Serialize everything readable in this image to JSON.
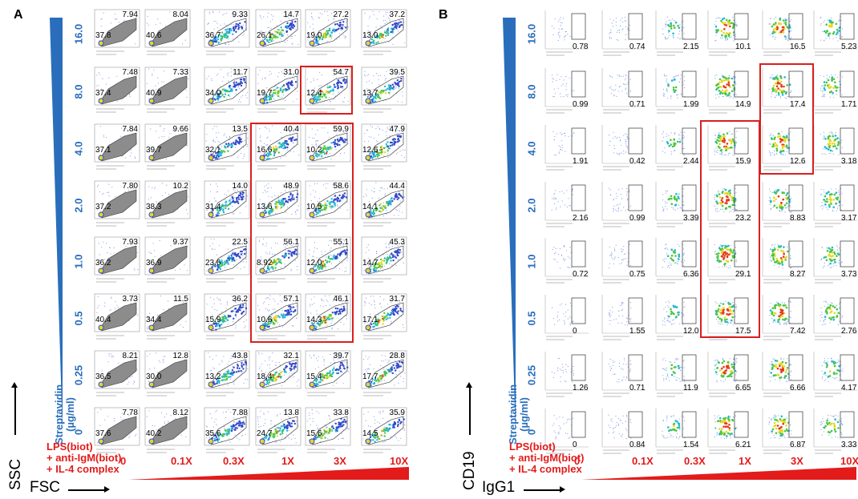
{
  "panel_a": {
    "letter": "A",
    "concentrations": [
      "16.0",
      "8.0",
      "4.0",
      "2.0",
      "1.0",
      "0.5",
      "0.25",
      "0"
    ],
    "streptavidin_label": [
      "Streptavidin",
      "(µg/ml)"
    ],
    "treatment_lines": [
      "LPS(biot)",
      "+ anti-IgM(biot)",
      "+ IL-4 complex"
    ],
    "dilutions": [
      "0",
      "0.1X",
      "0.3X",
      "1X",
      "3X",
      "10X"
    ],
    "y_axis": "SSC",
    "x_axis": "FSC",
    "top_right_values": [
      [
        "7.94",
        "8.04",
        "9.33",
        "14.7",
        "27.2",
        "37.2"
      ],
      [
        "7.48",
        "7.33",
        "11.7",
        "31.0",
        "54.7",
        "39.5"
      ],
      [
        "7.84",
        "9.66",
        "13.5",
        "40.4",
        "59.9",
        "47.9"
      ],
      [
        "7.80",
        "10.2",
        "14.0",
        "48.9",
        "58.6",
        "44.4"
      ],
      [
        "7.93",
        "9.37",
        "22.5",
        "56.1",
        "55.1",
        "45.3"
      ],
      [
        "3.73",
        "11.5",
        "36.2",
        "57.1",
        "46.1",
        "31.7"
      ],
      [
        "8.21",
        "12.8",
        "43.8",
        "32.1",
        "39.7",
        "28.8"
      ],
      [
        "7.78",
        "8.12",
        "7.88",
        "13.8",
        "33.8",
        "35.9"
      ]
    ],
    "left_values": [
      [
        "37.8",
        "40.6",
        "36.7",
        "26.1",
        "19.0",
        "13.0"
      ],
      [
        "37.4",
        "40.9",
        "34.0",
        "19.7",
        "12.4",
        "13.7"
      ],
      [
        "37.1",
        "39.7",
        "32.1",
        "16.6",
        "10.2",
        "12.6"
      ],
      [
        "37.2",
        "38.3",
        "31.4",
        "13.6",
        "10.5",
        "14.1"
      ],
      [
        "36.2",
        "36.9",
        "23.6",
        "8.92",
        "12.0",
        "14.7"
      ],
      [
        "40.4",
        "34.4",
        "15.9",
        "10.6",
        "14.3",
        "17.1"
      ],
      [
        "36.5",
        "30.0",
        "13.2",
        "18.4",
        "15.4",
        "17.7"
      ],
      [
        "37.6",
        "40.2",
        "35.6",
        "24.7",
        "15.6",
        "14.5"
      ]
    ]
  },
  "panel_b": {
    "letter": "B",
    "concentrations": [
      "16.0",
      "8.0",
      "4.0",
      "2.0",
      "1.0",
      "0.5",
      "0.25",
      "0"
    ],
    "streptavidin_label": [
      "Streptavidin",
      "(µg/ml)"
    ],
    "treatment_lines": [
      "LPS(biot)",
      "+ anti-IgM(biot)",
      "+ IL-4 complex"
    ],
    "dilutions": [
      "0",
      "0.1X",
      "0.3X",
      "1X",
      "3X",
      "10X"
    ],
    "y_axis": "CD19",
    "x_axis": "IgG1",
    "gate_values": [
      [
        "0.78",
        "0.74",
        "2.15",
        "10.1",
        "16.5",
        "5.23"
      ],
      [
        "0.99",
        "0.71",
        "1.99",
        "14.9",
        "17.4",
        "1.71"
      ],
      [
        "1.91",
        "0.42",
        "2.44",
        "15.9",
        "12.6",
        "3.18"
      ],
      [
        "2.16",
        "0.99",
        "3.39",
        "23.2",
        "8.83",
        "3.17"
      ],
      [
        "0.72",
        "0.75",
        "6.36",
        "29.1",
        "8.27",
        "3.73"
      ],
      [
        "0",
        "1.55",
        "12.0",
        "17.5",
        "7.42",
        "2.76"
      ],
      [
        "1.26",
        "0.71",
        "11.9",
        "6.65",
        "6.66",
        "4.17"
      ],
      [
        "0",
        "0.84",
        "1.54",
        "6.21",
        "6.87",
        "3.33"
      ]
    ]
  },
  "colors": {
    "blue": "#2a6ebb",
    "red": "#e31b1b",
    "highlight_box": "#d91f1f"
  }
}
